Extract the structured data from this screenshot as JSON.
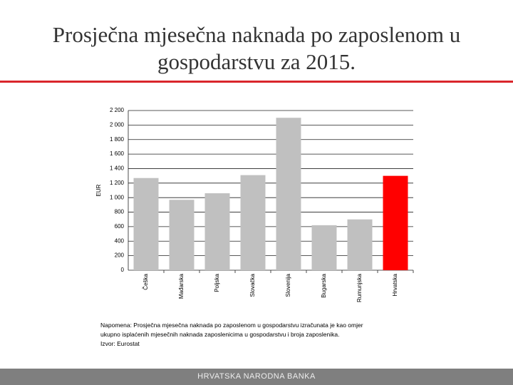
{
  "title": "Prosječna mjesečna naknada po zaposlenom u gospodarstvu za 2015.",
  "chart_data": {
    "type": "bar",
    "y_label": "EUR",
    "categories": [
      "Češka",
      "Mađarska",
      "Poljska",
      "Slovačka",
      "Slovenija",
      "Bugarska",
      "Rumunjska",
      "Hrvatska"
    ],
    "values": [
      1270,
      970,
      1060,
      1310,
      2100,
      620,
      700,
      1300
    ],
    "colors": [
      "#c0c0c0",
      "#c0c0c0",
      "#c0c0c0",
      "#c0c0c0",
      "#c0c0c0",
      "#c0c0c0",
      "#c0c0c0",
      "#ff0000"
    ],
    "ylim": [
      0,
      2200
    ],
    "yticks": [
      0,
      200,
      400,
      600,
      800,
      {
        "value": 1000,
        "label": "1 000"
      },
      {
        "value": 1200,
        "label": "1 200"
      },
      {
        "value": 1400,
        "label": "1 400"
      },
      {
        "value": 1600,
        "label": "1 600"
      },
      {
        "value": 1800,
        "label": "1 800"
      },
      {
        "value": 2000,
        "label": "2 000"
      },
      {
        "value": 2200,
        "label": "2 200"
      }
    ],
    "grid": true
  },
  "notes": [
    "Napomena: Prosječna mjesečna naknada po zaposlenom u gospodarstvu izračunata je kao omjer",
    "ukupno isplaćenih mjesečnih naknada zaposlenicima u gospodarstvu i broja zaposlenika.",
    "Izvor: Eurostat"
  ],
  "footer": "HRVATSKA NARODNA BANKA"
}
